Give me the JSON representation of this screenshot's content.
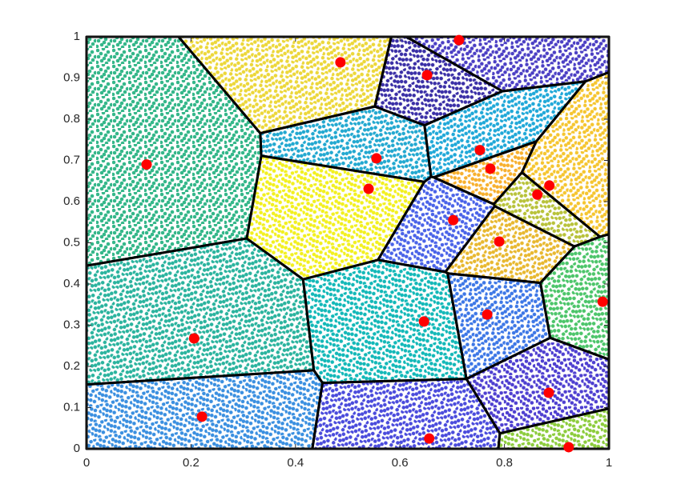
{
  "chart_data": {
    "type": "scatter",
    "series": [
      {
        "color": "#ff0000",
        "x": [
          0.115,
          0.206,
          0.221,
          0.486,
          0.652,
          0.713,
          0.555,
          0.54,
          0.753,
          0.773,
          0.886,
          0.863,
          0.702,
          0.79,
          0.646,
          0.767,
          0.988,
          0.885,
          0.656,
          0.923
        ],
        "values": [
          0.69,
          0.268,
          0.078,
          0.938,
          0.907,
          0.992,
          0.705,
          0.631,
          0.725,
          0.68,
          0.639,
          0.617,
          0.555,
          0.503,
          0.309,
          0.326,
          0.357,
          0.136,
          0.025,
          0.004
        ]
      }
    ],
    "cell_colors": [
      "#35b78a",
      "#2ab39e",
      "#3a8fe0",
      "#ecd73a",
      "#3a2fa6",
      "#4b3fc4",
      "#22a8d0",
      "#f2f020",
      "#20a8d8",
      "#f7b02e",
      "#f5c530",
      "#b8c23a",
      "#4a63e8",
      "#e8b830",
      "#13b8b8",
      "#3d77e6",
      "#4cc56a",
      "#4e3fd0",
      "#4a4bdc",
      "#8ccc3c"
    ],
    "voronoi": true,
    "xlim": [
      0,
      1
    ],
    "ylim": [
      0,
      1
    ],
    "xticks": [
      0,
      0.2,
      0.4,
      0.6,
      0.8,
      1
    ],
    "yticks": [
      0,
      0.1,
      0.2,
      0.3,
      0.4,
      0.5,
      0.6,
      0.7,
      0.8,
      0.9,
      1
    ]
  }
}
